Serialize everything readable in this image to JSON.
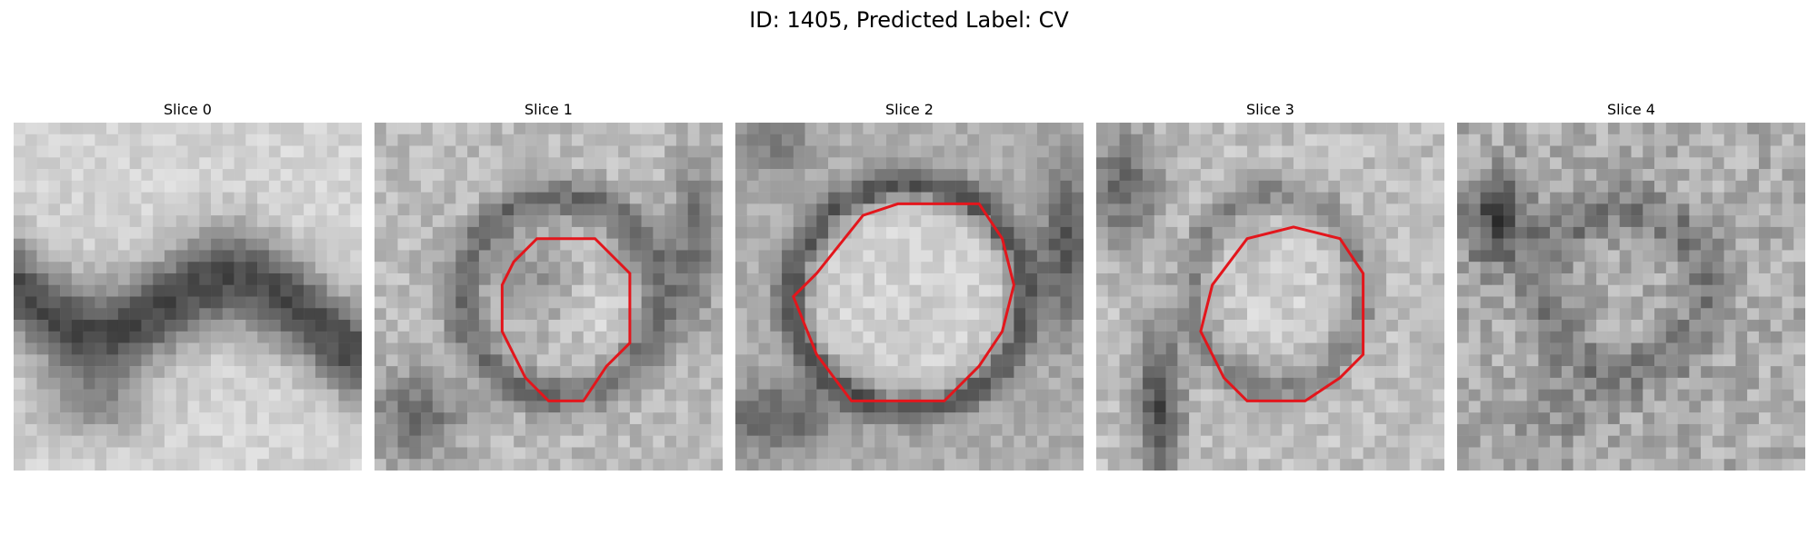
{
  "figure": {
    "title": "ID: 1405, Predicted Label: CV"
  },
  "slices": [
    {
      "label": "Slice 0",
      "has_contour": false
    },
    {
      "label": "Slice 1",
      "has_contour": true
    },
    {
      "label": "Slice 2",
      "has_contour": true
    },
    {
      "label": "Slice 3",
      "has_contour": true
    },
    {
      "label": "Slice 4",
      "has_contour": false
    }
  ],
  "colors": {
    "contour": "#e3161c",
    "background": "#ffffff"
  }
}
